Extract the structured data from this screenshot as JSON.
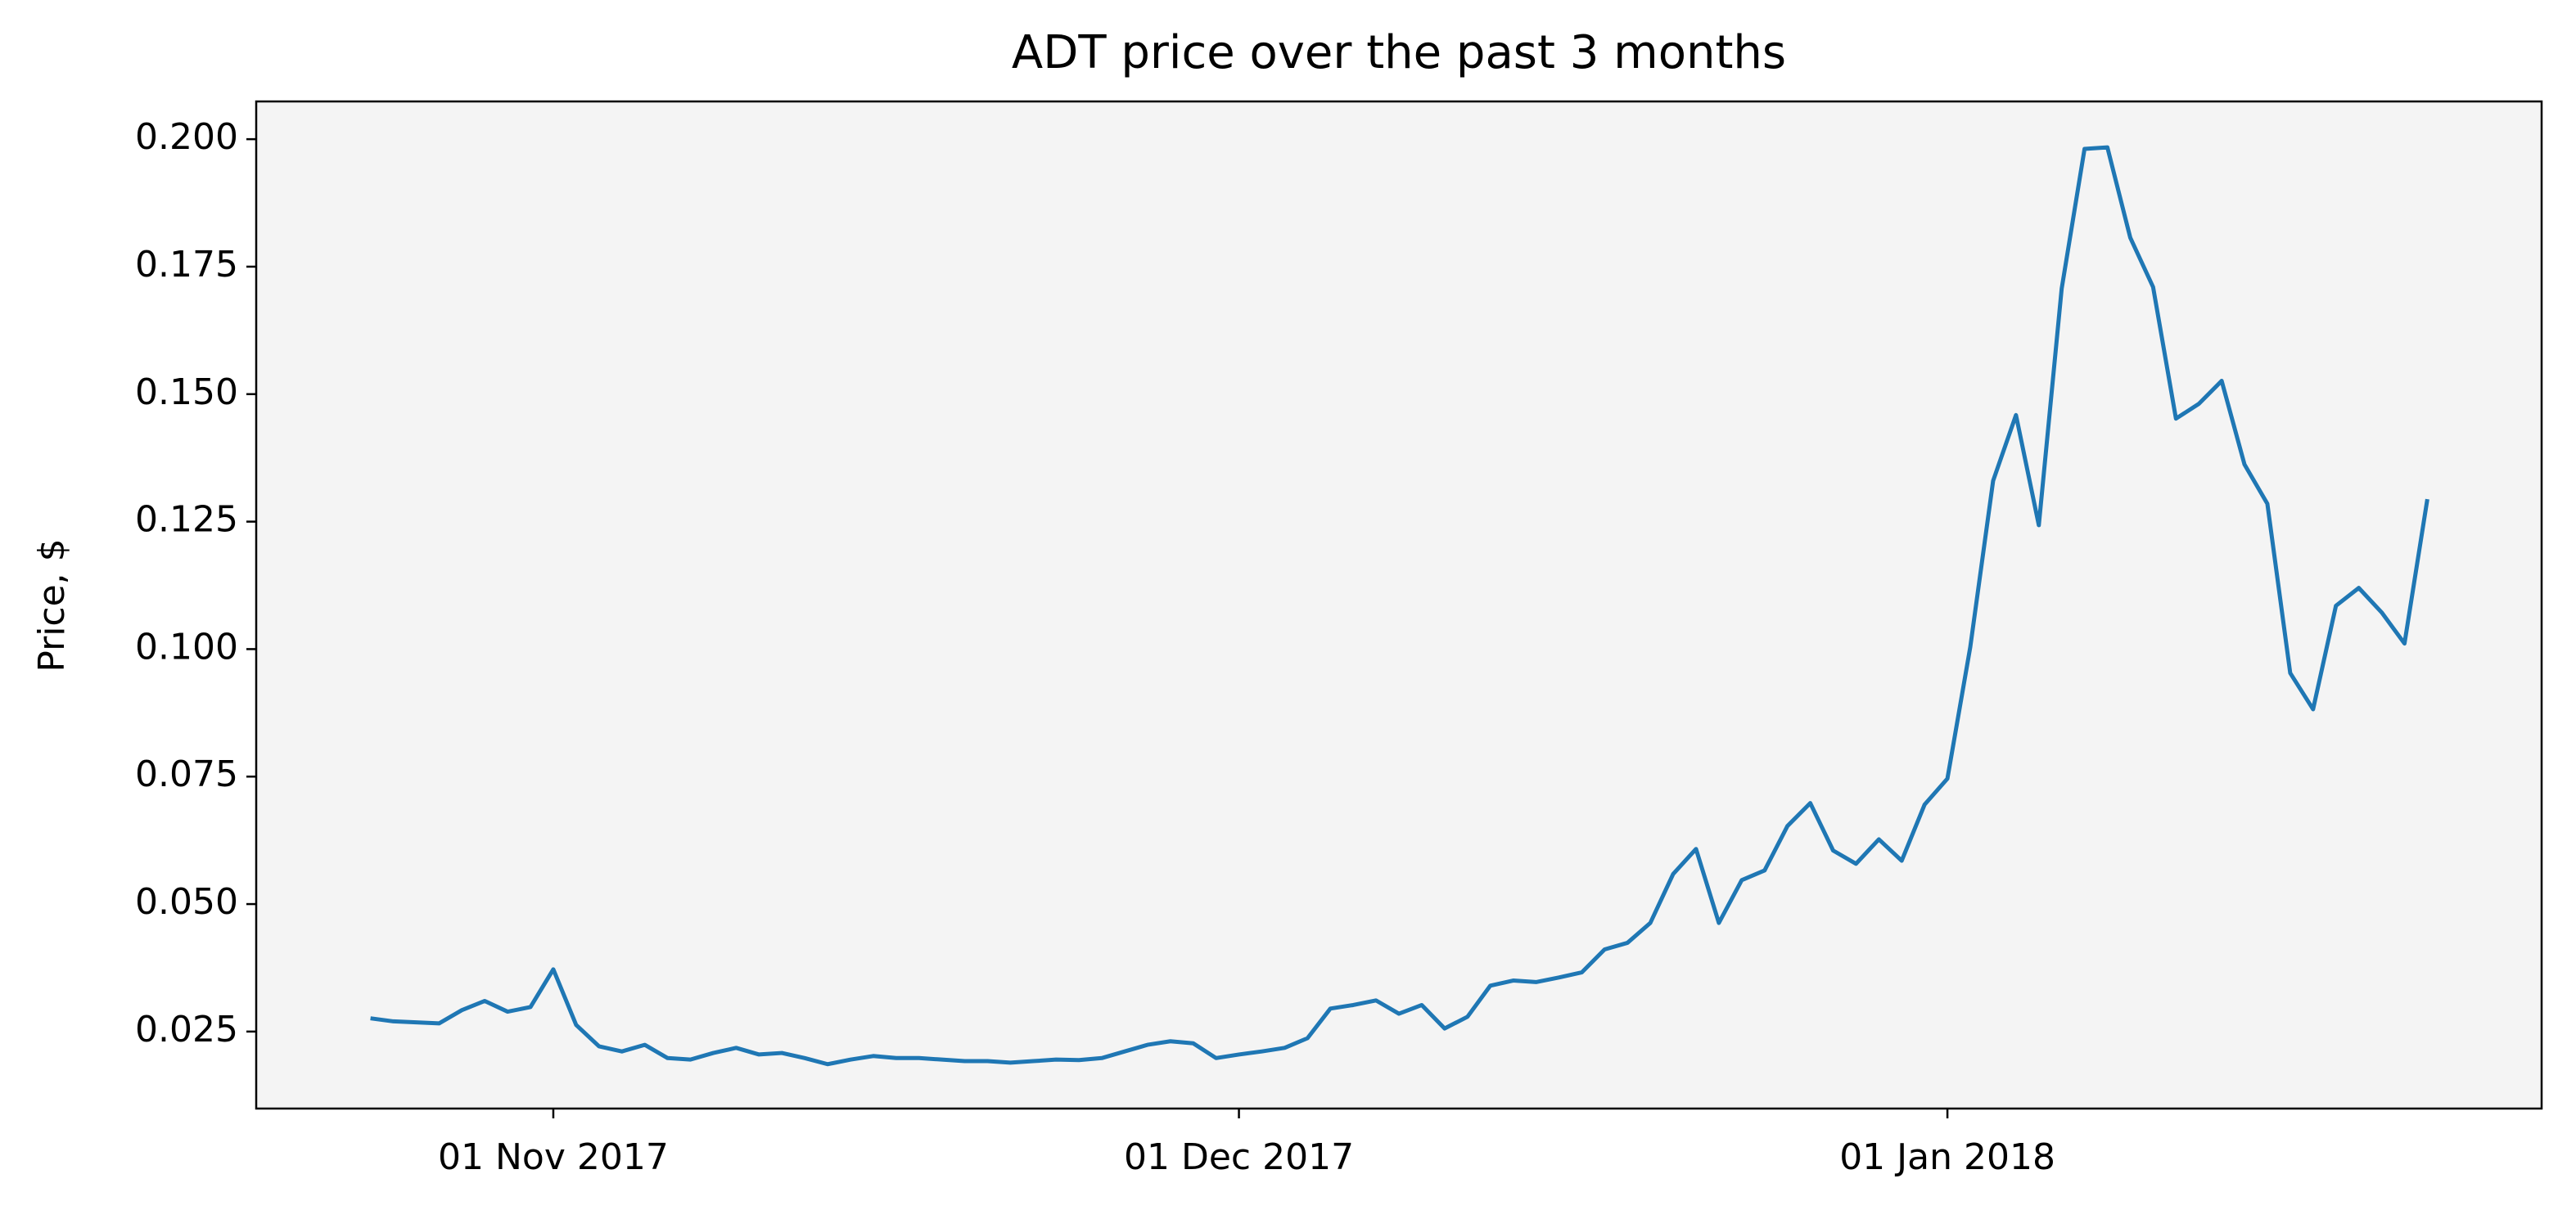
{
  "chart_data": {
    "type": "line",
    "title": "ADT price over the past 3 months",
    "y_label": "Price, $",
    "x": [
      "2017-10-24",
      "2017-10-25",
      "2017-10-26",
      "2017-10-27",
      "2017-10-28",
      "2017-10-29",
      "2017-10-30",
      "2017-10-31",
      "2017-11-01",
      "2017-11-02",
      "2017-11-03",
      "2017-11-04",
      "2017-11-05",
      "2017-11-06",
      "2017-11-07",
      "2017-11-08",
      "2017-11-09",
      "2017-11-10",
      "2017-11-11",
      "2017-11-12",
      "2017-11-13",
      "2017-11-14",
      "2017-11-15",
      "2017-11-16",
      "2017-11-17",
      "2017-11-18",
      "2017-11-19",
      "2017-11-20",
      "2017-11-21",
      "2017-11-22",
      "2017-11-23",
      "2017-11-24",
      "2017-11-25",
      "2017-11-26",
      "2017-11-27",
      "2017-11-28",
      "2017-11-29",
      "2017-11-30",
      "2017-12-01",
      "2017-12-02",
      "2017-12-03",
      "2017-12-04",
      "2017-12-05",
      "2017-12-06",
      "2017-12-07",
      "2017-12-08",
      "2017-12-09",
      "2017-12-10",
      "2017-12-11",
      "2017-12-12",
      "2017-12-13",
      "2017-12-14",
      "2017-12-15",
      "2017-12-16",
      "2017-12-17",
      "2017-12-18",
      "2017-12-19",
      "2017-12-20",
      "2017-12-21",
      "2017-12-22",
      "2017-12-23",
      "2017-12-24",
      "2017-12-25",
      "2017-12-26",
      "2017-12-27",
      "2017-12-28",
      "2017-12-29",
      "2017-12-30",
      "2017-12-31",
      "2018-01-01",
      "2018-01-02",
      "2018-01-03",
      "2018-01-04",
      "2018-01-05",
      "2018-01-06",
      "2018-01-07",
      "2018-01-08",
      "2018-01-09",
      "2018-01-10",
      "2018-01-11",
      "2018-01-12",
      "2018-01-13",
      "2018-01-14",
      "2018-01-15",
      "2018-01-16",
      "2018-01-17",
      "2018-01-18",
      "2018-01-19",
      "2018-01-20",
      "2018-01-21",
      "2018-01-22"
    ],
    "values": [
      0.0276,
      0.027,
      0.0268,
      0.0266,
      0.0292,
      0.031,
      0.0289,
      0.0298,
      0.0372,
      0.0263,
      0.0221,
      0.0211,
      0.0224,
      0.0198,
      0.0195,
      0.0208,
      0.0218,
      0.0205,
      0.0208,
      0.0198,
      0.0186,
      0.0195,
      0.0202,
      0.0198,
      0.0198,
      0.0195,
      0.0192,
      0.0192,
      0.0189,
      0.0192,
      0.0195,
      0.0194,
      0.0198,
      0.0211,
      0.0224,
      0.0231,
      0.0227,
      0.0198,
      0.0205,
      0.0211,
      0.0218,
      0.0237,
      0.0295,
      0.0302,
      0.0311,
      0.0285,
      0.0302,
      0.0256,
      0.0279,
      0.034,
      0.035,
      0.0347,
      0.0356,
      0.0366,
      0.0411,
      0.0424,
      0.0463,
      0.0559,
      0.0608,
      0.0463,
      0.0547,
      0.0566,
      0.0653,
      0.0698,
      0.0605,
      0.0579,
      0.0627,
      0.0585,
      0.0695,
      0.0746,
      0.1004,
      0.133,
      0.1459,
      0.1243,
      0.1707,
      0.1981,
      0.1984,
      0.1807,
      0.171,
      0.1452,
      0.1481,
      0.1526,
      0.1362,
      0.1285,
      0.0953,
      0.0882,
      0.1085,
      0.112,
      0.1072,
      0.1011,
      0.1294
    ],
    "color": "#1f77b4",
    "xlim": [
      "2017-10-19",
      "2018-01-27"
    ],
    "xticks": [
      {
        "value": "2017-11-01",
        "label": "01 Nov 2017"
      },
      {
        "value": "2017-12-01",
        "label": "01 Dec 2017"
      },
      {
        "value": "2018-01-01",
        "label": "01 Jan 2018"
      }
    ],
    "ylim": [
      0.0099,
      0.2074
    ],
    "yticks": [
      {
        "value": 0.025,
        "label": "0.025"
      },
      {
        "value": 0.05,
        "label": "0.050"
      },
      {
        "value": 0.075,
        "label": "0.075"
      },
      {
        "value": 0.1,
        "label": "0.100"
      },
      {
        "value": 0.125,
        "label": "0.125"
      },
      {
        "value": 0.15,
        "label": "0.150"
      },
      {
        "value": 0.175,
        "label": "0.175"
      },
      {
        "value": 0.2,
        "label": "0.200"
      }
    ],
    "grid": false
  }
}
